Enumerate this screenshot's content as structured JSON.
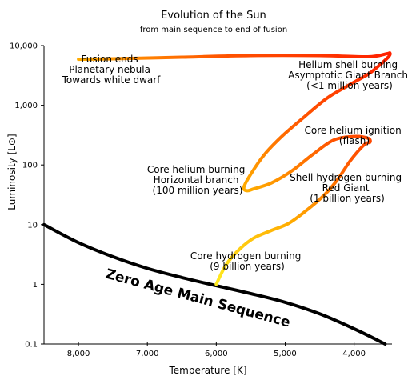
{
  "chart_data": {
    "type": "line",
    "title": "Evolution of the Sun",
    "subtitle": "from main sequence to end of fusion",
    "xlabel": "Temperature [K]",
    "ylabel": "Luminosity [L⊙]",
    "x_scale": "linear-reversed",
    "y_scale": "log",
    "xlim": [
      8500,
      3450
    ],
    "ylim": [
      0.1,
      10000
    ],
    "x_ticks": [
      8000,
      7000,
      6000,
      5000,
      4000
    ],
    "x_tick_labels": [
      "8,000",
      "7,000",
      "6,000",
      "5,000",
      "4,000"
    ],
    "y_ticks": [
      0.1,
      1,
      10,
      100,
      1000,
      10000
    ],
    "y_tick_labels": [
      "0.1",
      "1",
      "10",
      "100",
      "1,000",
      "10,000"
    ],
    "grid": false,
    "series": [
      {
        "name": "Zero Age Main Sequence",
        "color": "#000000",
        "points": [
          [
            8500,
            10
          ],
          [
            8000,
            5
          ],
          [
            7500,
            2.9
          ],
          [
            7000,
            1.85
          ],
          [
            6500,
            1.3
          ],
          [
            6000,
            0.95
          ],
          [
            5500,
            0.7
          ],
          [
            5000,
            0.5
          ],
          [
            4500,
            0.32
          ],
          [
            4000,
            0.18
          ],
          [
            3550,
            0.1
          ]
        ]
      },
      {
        "name": "",
        "colors": [
          "#ffee22",
          "#ffaa00",
          "#ff5500",
          "#ff2200"
        ],
        "points": [
          [
            6000,
            1
          ],
          [
            5850,
            2.2
          ],
          [
            5650,
            4
          ],
          [
            5450,
            6
          ],
          [
            5200,
            8
          ],
          [
            4950,
            10.5
          ],
          [
            4700,
            17
          ],
          [
            4450,
            30
          ],
          [
            4250,
            55
          ],
          [
            4050,
            120
          ],
          [
            3850,
            220
          ],
          [
            3770,
            240
          ],
          [
            3800,
            280
          ],
          [
            4000,
            300
          ],
          [
            4300,
            260
          ],
          [
            4600,
            150
          ],
          [
            4900,
            80
          ],
          [
            5200,
            50
          ],
          [
            5450,
            40
          ],
          [
            5550,
            37
          ],
          [
            5600,
            42
          ],
          [
            5500,
            70
          ],
          [
            5300,
            150
          ],
          [
            5050,
            300
          ],
          [
            4750,
            600
          ],
          [
            4400,
            1300
          ],
          [
            4100,
            2100
          ],
          [
            3800,
            3300
          ],
          [
            3650,
            4500
          ],
          [
            3500,
            6500
          ],
          [
            3480,
            7500
          ],
          [
            3530,
            7300
          ],
          [
            3800,
            6500
          ],
          [
            4500,
            6800
          ],
          [
            5500,
            6800
          ],
          [
            6500,
            6400
          ],
          [
            7500,
            6000
          ],
          [
            8000,
            5900
          ]
        ]
      }
    ],
    "annotations": [
      {
        "lines": [
          "Fusion ends",
          "Planetary nebula",
          "Towards white dwarf"
        ]
      },
      {
        "lines": [
          "Helium shell burning",
          "Asymptotic Giant Branch",
          "(<1 million years)"
        ]
      },
      {
        "lines": [
          "Core helium ignition",
          "(flash)"
        ]
      },
      {
        "lines": [
          "Core helium burning",
          "Horizontal branch",
          "(100 million years)"
        ]
      },
      {
        "lines": [
          "Shell hydrogen burning",
          "Red Giant",
          "(1 billion years)"
        ]
      },
      {
        "lines": [
          "Core hydrogen burning",
          "(9 billion years)"
        ]
      },
      {
        "lines": [
          "Zero Age Main Sequence"
        ]
      }
    ]
  }
}
